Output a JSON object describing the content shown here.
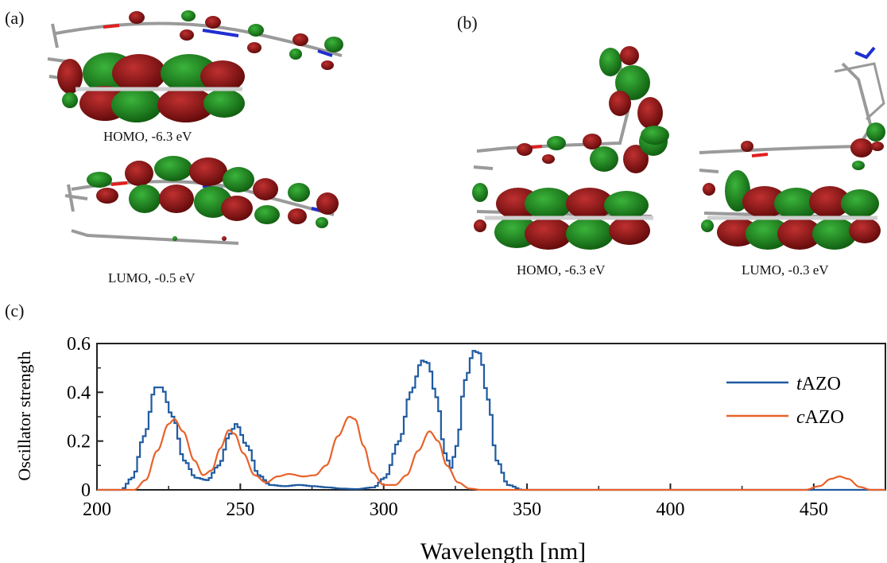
{
  "panels": {
    "a": {
      "label": "(a)",
      "homo_caption": "HOMO, -6.3 eV",
      "lumo_caption": "LUMO, -0.5 eV"
    },
    "b": {
      "label": "(b)",
      "homo_caption": "HOMO, -6.3 eV",
      "lumo_caption": "LUMO, -0.3 eV"
    },
    "c": {
      "label": "(c)"
    }
  },
  "colors": {
    "orbital_red": "#7a0e0e",
    "orbital_green": "#1a7a1a",
    "bond_grey": "#9a9a9a",
    "nitrogen_blue": "#1f2fd0",
    "oxygen_red": "#e02020"
  },
  "chart_data": {
    "type": "line",
    "title": "",
    "xlabel": "Wavelength [nm]",
    "ylabel": "Oscillator strength",
    "xlim": [
      200,
      475
    ],
    "ylim": [
      0,
      0.6
    ],
    "xticks": [
      200,
      250,
      300,
      350,
      400,
      450
    ],
    "yticks": [
      0,
      0.2,
      0.4,
      0.6
    ],
    "ytick_labels": [
      "0",
      "0.2",
      "0.4",
      "0.6"
    ],
    "legend_position": "right",
    "series": [
      {
        "name_italic": "t",
        "name_rest": "AZO",
        "color": "#1f5aa0",
        "style": "step",
        "points": [
          [
            200,
            0
          ],
          [
            208,
            0
          ],
          [
            212,
            0.05
          ],
          [
            216,
            0.22
          ],
          [
            220,
            0.42
          ],
          [
            222,
            0.42
          ],
          [
            226,
            0.3
          ],
          [
            230,
            0.12
          ],
          [
            234,
            0.05
          ],
          [
            238,
            0.04
          ],
          [
            242,
            0.1
          ],
          [
            246,
            0.23
          ],
          [
            248,
            0.27
          ],
          [
            252,
            0.18
          ],
          [
            256,
            0.06
          ],
          [
            260,
            0.02
          ],
          [
            265,
            0.015
          ],
          [
            270,
            0.02
          ],
          [
            275,
            0.015
          ],
          [
            280,
            0.01
          ],
          [
            285,
            0.005
          ],
          [
            290,
            0.003
          ],
          [
            296,
            0.01
          ],
          [
            300,
            0.05
          ],
          [
            305,
            0.2
          ],
          [
            309,
            0.4
          ],
          [
            313,
            0.53
          ],
          [
            315,
            0.52
          ],
          [
            318,
            0.38
          ],
          [
            321,
            0.15
          ],
          [
            323,
            0.09
          ],
          [
            325,
            0.18
          ],
          [
            328,
            0.45
          ],
          [
            331,
            0.57
          ],
          [
            333,
            0.56
          ],
          [
            336,
            0.37
          ],
          [
            339,
            0.12
          ],
          [
            343,
            0.02
          ],
          [
            348,
            0
          ],
          [
            475,
            0
          ]
        ]
      },
      {
        "name_italic": "c",
        "name_rest": "AZO",
        "color": "#e8622b",
        "style": "line",
        "points": [
          [
            200,
            0
          ],
          [
            213,
            0
          ],
          [
            217,
            0.04
          ],
          [
            221,
            0.16
          ],
          [
            225,
            0.27
          ],
          [
            227,
            0.29
          ],
          [
            230,
            0.24
          ],
          [
            234,
            0.12
          ],
          [
            237,
            0.06
          ],
          [
            240,
            0.08
          ],
          [
            243,
            0.17
          ],
          [
            246,
            0.245
          ],
          [
            248,
            0.23
          ],
          [
            251,
            0.15
          ],
          [
            255,
            0.06
          ],
          [
            259,
            0.03
          ],
          [
            263,
            0.055
          ],
          [
            267,
            0.065
          ],
          [
            272,
            0.055
          ],
          [
            276,
            0.06
          ],
          [
            280,
            0.1
          ],
          [
            284,
            0.22
          ],
          [
            288,
            0.3
          ],
          [
            290,
            0.29
          ],
          [
            293,
            0.18
          ],
          [
            296,
            0.07
          ],
          [
            300,
            0.02
          ],
          [
            304,
            0.02
          ],
          [
            308,
            0.06
          ],
          [
            312,
            0.16
          ],
          [
            316,
            0.24
          ],
          [
            319,
            0.2
          ],
          [
            322,
            0.1
          ],
          [
            326,
            0.03
          ],
          [
            330,
            0.005
          ],
          [
            334,
            0
          ],
          [
            447,
            0
          ],
          [
            452,
            0.015
          ],
          [
            456,
            0.045
          ],
          [
            459,
            0.055
          ],
          [
            462,
            0.045
          ],
          [
            466,
            0.012
          ],
          [
            470,
            0
          ],
          [
            475,
            0
          ]
        ]
      }
    ]
  }
}
